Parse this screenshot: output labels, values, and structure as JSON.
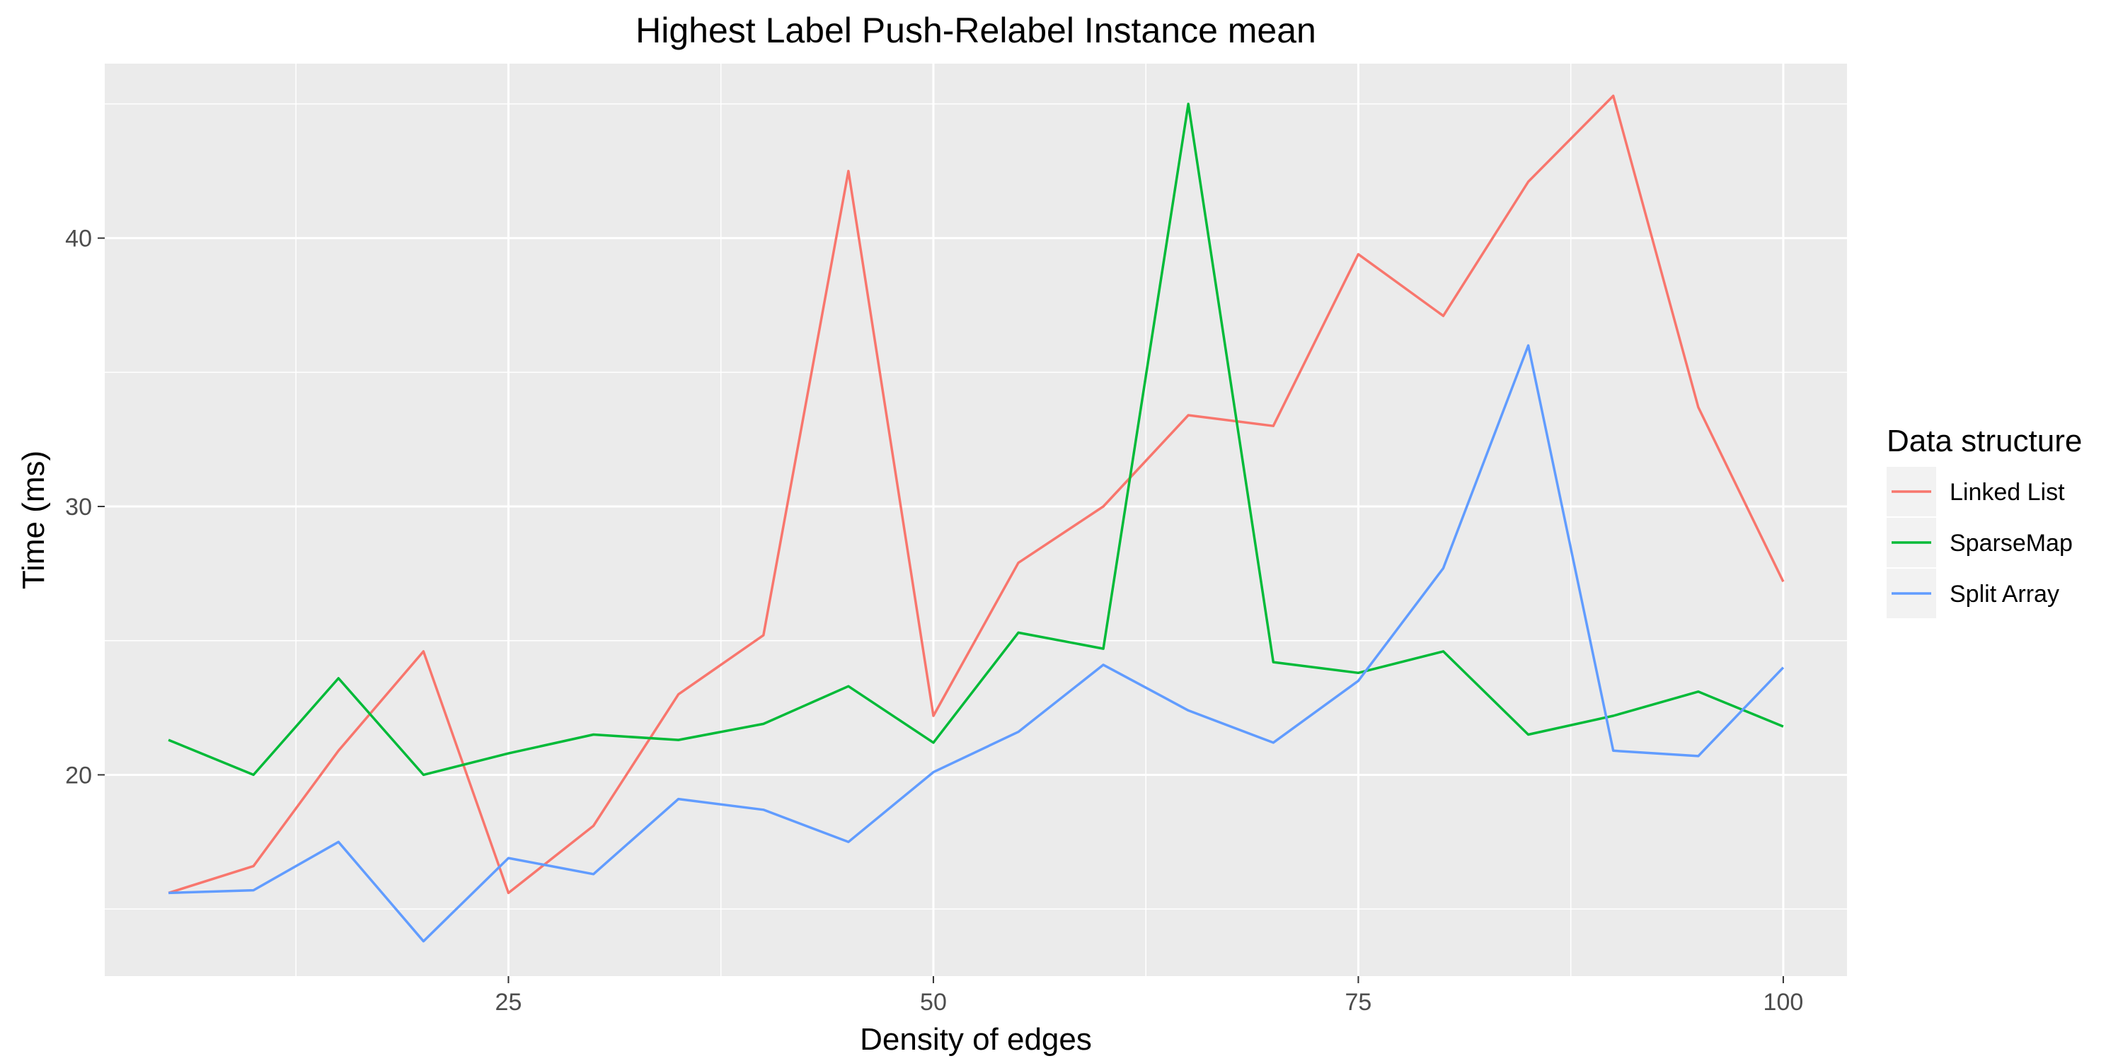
{
  "chart_data": {
    "type": "line",
    "title": "Highest Label Push-Relabel Instance mean",
    "xlabel": "Density of edges",
    "ylabel": "Time (ms)",
    "xlim": [
      1.25,
      103.75
    ],
    "ylim": [
      12.5,
      46.5
    ],
    "x_ticks": [
      25,
      50,
      75,
      100
    ],
    "x_minor": [
      12.5,
      37.5,
      62.5,
      87.5
    ],
    "y_ticks": [
      20,
      30,
      40
    ],
    "y_minor": [
      15,
      25,
      35,
      45
    ],
    "grid": true,
    "legend": {
      "title": "Data structure",
      "position": "right"
    },
    "x": [
      5,
      10,
      15,
      20,
      25,
      30,
      35,
      40,
      45,
      50,
      55,
      60,
      65,
      70,
      75,
      80,
      85,
      90,
      95,
      100
    ],
    "series": [
      {
        "name": "Linked List",
        "color": "#F8766D",
        "values": [
          15.6,
          16.6,
          20.9,
          24.6,
          15.6,
          18.1,
          23.0,
          25.2,
          42.5,
          22.2,
          27.9,
          30.0,
          33.4,
          33.0,
          39.4,
          37.1,
          42.1,
          45.3,
          33.7,
          27.2
        ]
      },
      {
        "name": "SparseMap",
        "color": "#00BA38",
        "values": [
          21.3,
          20.0,
          23.6,
          20.0,
          20.8,
          21.5,
          21.3,
          21.9,
          23.3,
          21.2,
          25.3,
          24.7,
          45.0,
          24.2,
          23.8,
          24.6,
          21.5,
          22.2,
          23.1,
          21.8
        ]
      },
      {
        "name": "Split Array",
        "color": "#619CFF",
        "values": [
          15.6,
          15.7,
          17.5,
          13.8,
          16.9,
          16.3,
          19.1,
          18.7,
          17.5,
          20.1,
          21.6,
          24.1,
          22.4,
          21.2,
          23.5,
          27.7,
          36.0,
          20.9,
          20.7,
          24.0
        ]
      }
    ]
  }
}
